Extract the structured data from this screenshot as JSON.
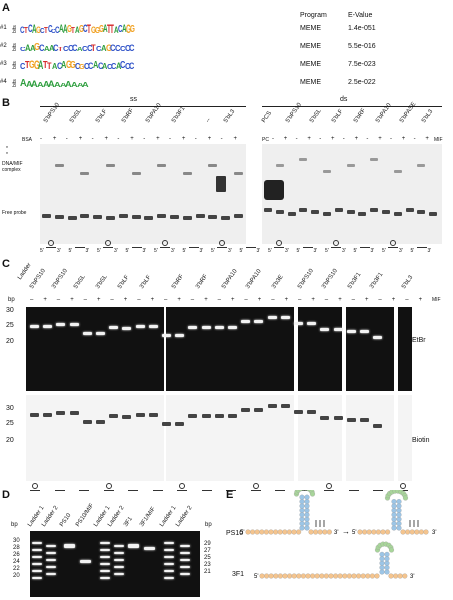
{
  "panels": {
    "A": "A",
    "B": "B",
    "C": "C",
    "D": "D",
    "E": "E"
  },
  "panelA": {
    "header_program": "Program",
    "header_evalue": "E-Value",
    "motifs": [
      {
        "id": "#1",
        "logo": "CTCAGCTCCCAAGTAGCTGGGATTACAGG",
        "program": "MEME",
        "evalue": "1.4e-051"
      },
      {
        "id": "#2",
        "logo": "CAAGCAACTCCCACCTCAGCCCCC",
        "program": "MEME",
        "evalue": "5.5e-016"
      },
      {
        "id": "#3",
        "logo": "CTGGATTACAGGCGCCACACCACCC",
        "program": "MEME",
        "evalue": "7.5e-023"
      },
      {
        "id": "#4",
        "logo": "AAAAAAAAAAAA",
        "program": "MEME",
        "evalue": "2.5e-022"
      }
    ],
    "bits": "bits"
  },
  "panelB": {
    "ss": "ss",
    "ds": "ds",
    "bsa": "BSA",
    "pc": "PC",
    "mif": "MIF",
    "complex": "DNA/MIF complex",
    "free_probe": "Free probe",
    "star": "*",
    "ss_lanes": [
      "5'bPS10",
      "5'bSL",
      "5'bLF",
      "5'bRF",
      "5'bPA10",
      "5'b3F1",
      "--",
      "5'bL3"
    ],
    "ds_lanes": [
      "PCS",
      "5'bPS10",
      "5'bSL",
      "5'bLF",
      "5'bRF",
      "5'bPA10",
      "5'bPASE",
      "5'bL3"
    ],
    "signs": [
      "-",
      "+"
    ],
    "five": "5'",
    "three": "3'"
  },
  "panelC": {
    "ladder": "Ladder",
    "bp": "bp",
    "mif": "MIF",
    "lanes": [
      "5'bPS10",
      "3'bPS10",
      "5'bSL",
      "3'bSL",
      "5'bLF",
      "3'bLF",
      "5'bRF",
      "3'bRF",
      "5'bPA10",
      "3'bPA10",
      "3'b3E",
      "5'bPS10",
      "3'bPS10",
      "5'b3F1",
      "3'b3F1",
      "5'bL3"
    ],
    "ticks": [
      "30",
      "25",
      "20"
    ],
    "etbr": "EtBr",
    "biotin": "Biotin"
  },
  "panelD": {
    "bp": "bp",
    "lanes": [
      "Ladder 1",
      "Ladder 2",
      "PS10",
      "PS10/MIF",
      "Ladder 1",
      "Ladder 2",
      "3F1",
      "3F1/MIF",
      "Ladder 1",
      "Ladder 2"
    ],
    "left_ticks": [
      "30",
      "28",
      "26",
      "24",
      "22",
      "20"
    ],
    "right_ticks": [
      "29",
      "27",
      "25",
      "23",
      "21"
    ]
  },
  "panelE": {
    "ps": "PS10",
    "f3": "3F1",
    "five": "5'",
    "three": "3'",
    "arrow": "→"
  },
  "colors": {
    "A": "#2e9e3e",
    "C": "#2b4fc7",
    "G": "#f0a020",
    "T": "#d62b2b",
    "nt_peach": "#f4c48e",
    "nt_blue": "#9cc5e6",
    "nt_green": "#a8d59a"
  }
}
